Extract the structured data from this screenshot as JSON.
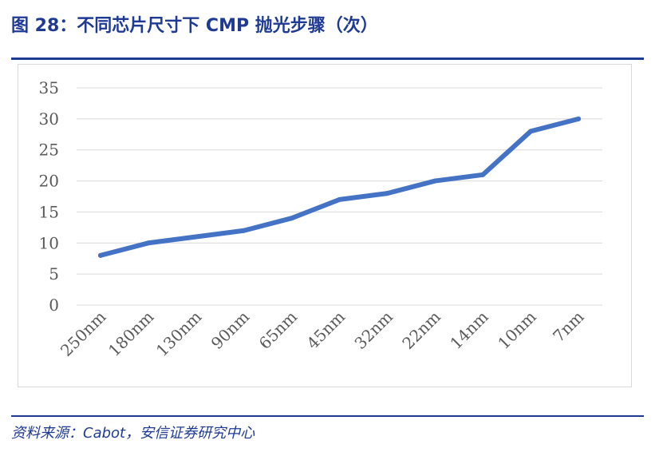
{
  "title": "图 28：不同芯片尺寸下 CMP 抛光步骤（次）",
  "source": "资料来源：Cabot，安信证券研究中心",
  "colors": {
    "line": "#4472c4",
    "grid": "#d9d9d9",
    "accent": "#1f3a93"
  },
  "chart_data": {
    "type": "line",
    "categories": [
      "250nm",
      "180nm",
      "130nm",
      "90nm",
      "65nm",
      "45nm",
      "32nm",
      "22nm",
      "14nm",
      "10nm",
      "7nm"
    ],
    "values": [
      8,
      10,
      11,
      12,
      14,
      17,
      18,
      20,
      21,
      28,
      30
    ],
    "ylim": [
      0,
      35
    ],
    "yticks": [
      0,
      5,
      10,
      15,
      20,
      25,
      30,
      35
    ],
    "grid": true,
    "legend": "none"
  }
}
